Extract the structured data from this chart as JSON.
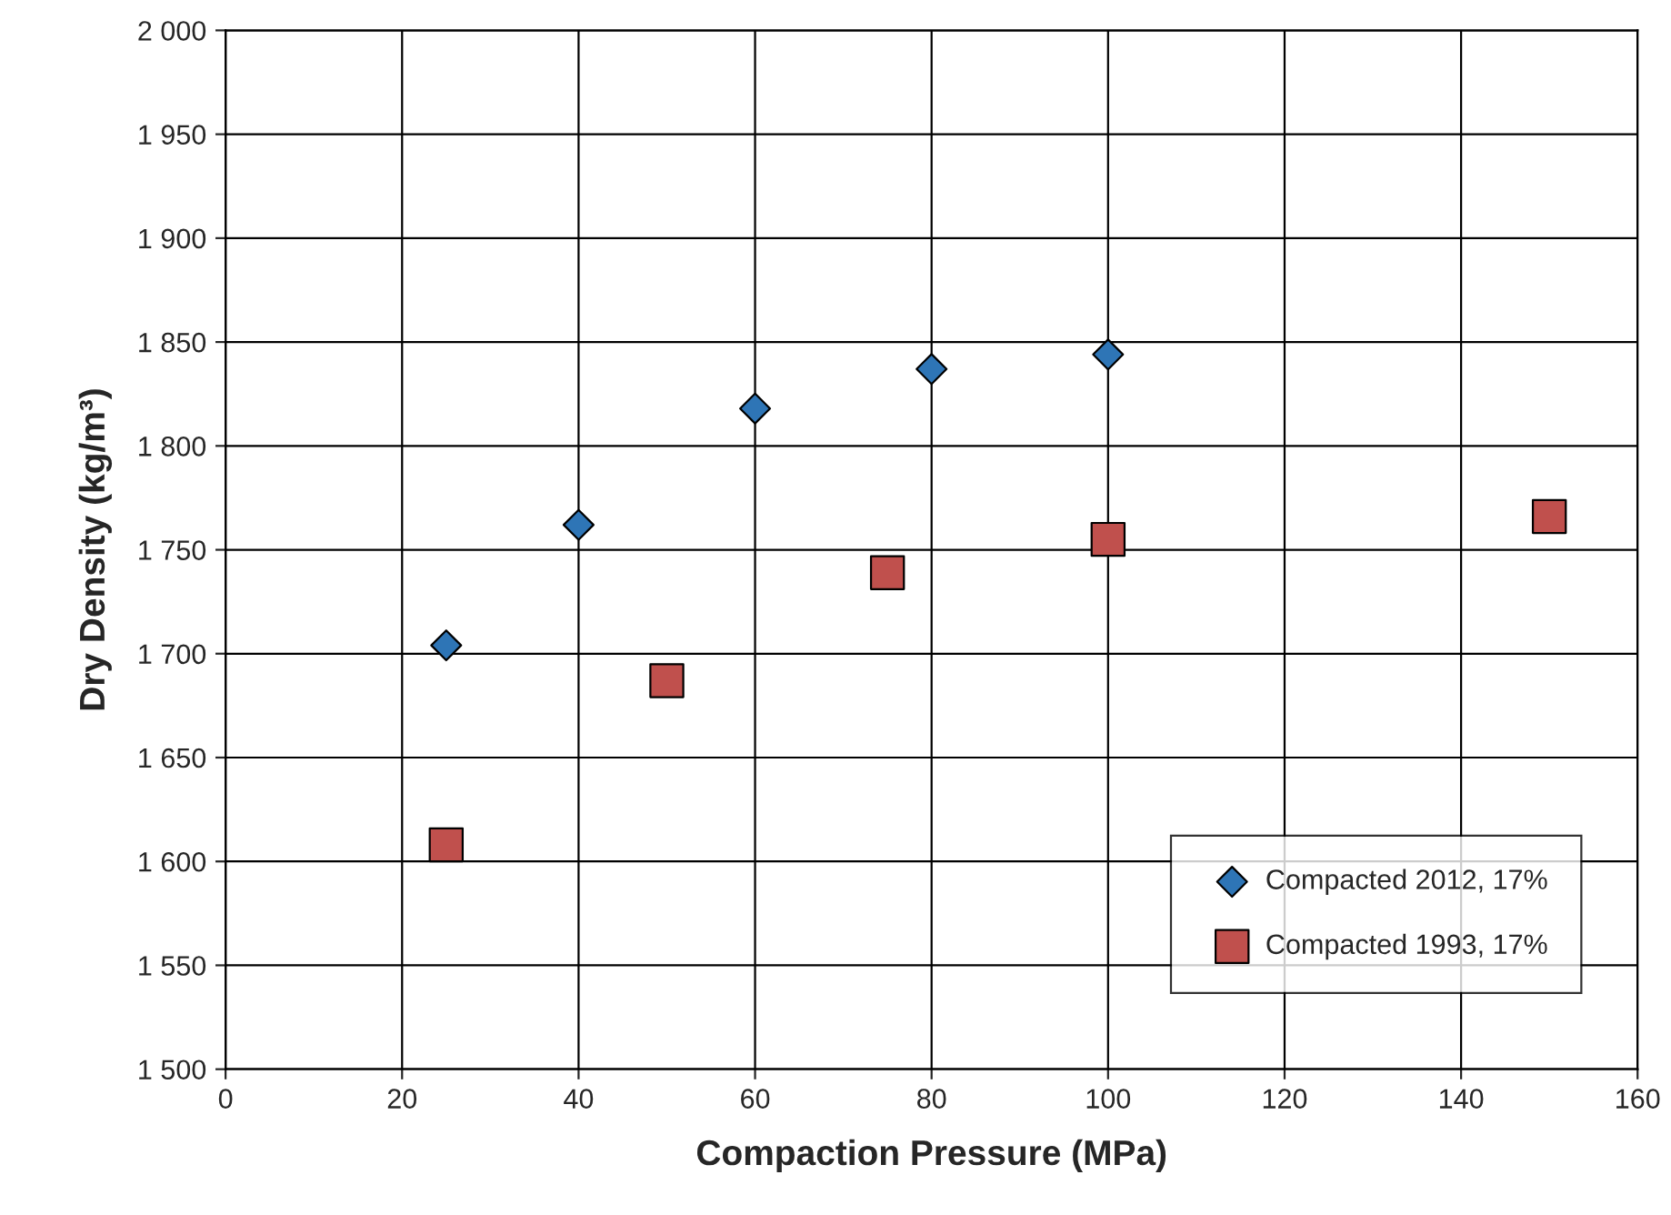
{
  "chart_data": {
    "type": "scatter",
    "xlabel": "Compaction Pressure (MPa)",
    "ylabel": "Dry Density (kg/m³)",
    "xlim": [
      0,
      160
    ],
    "xticks": [
      0,
      20,
      40,
      60,
      80,
      100,
      120,
      140,
      160
    ],
    "ylim": [
      1500,
      2000
    ],
    "yticks": [
      {
        "value": 1500,
        "label": "1 500"
      },
      {
        "value": 1550,
        "label": "1 550"
      },
      {
        "value": 1600,
        "label": "1 600"
      },
      {
        "value": 1650,
        "label": "1 650"
      },
      {
        "value": 1700,
        "label": "1 700"
      },
      {
        "value": 1750,
        "label": "1 750"
      },
      {
        "value": 1800,
        "label": "1 800"
      },
      {
        "value": 1850,
        "label": "1 850"
      },
      {
        "value": 1900,
        "label": "1 900"
      },
      {
        "value": 1950,
        "label": "1 950"
      },
      {
        "value": 2000,
        "label": "2 000"
      }
    ],
    "grid": true,
    "legend": "bottom right",
    "series": [
      {
        "name": "Compacted 2012, 17%",
        "color": "#2e75b6",
        "marker": "diamond",
        "x": [
          25,
          40,
          60,
          80,
          100
        ],
        "values": [
          1704,
          1762,
          1818,
          1837,
          1844
        ]
      },
      {
        "name": "Compacted 1993, 17%",
        "color": "#c0504d",
        "marker": "square",
        "x": [
          25,
          50,
          75,
          100,
          150
        ],
        "values": [
          1608,
          1687,
          1739,
          1755,
          1766
        ]
      }
    ]
  }
}
